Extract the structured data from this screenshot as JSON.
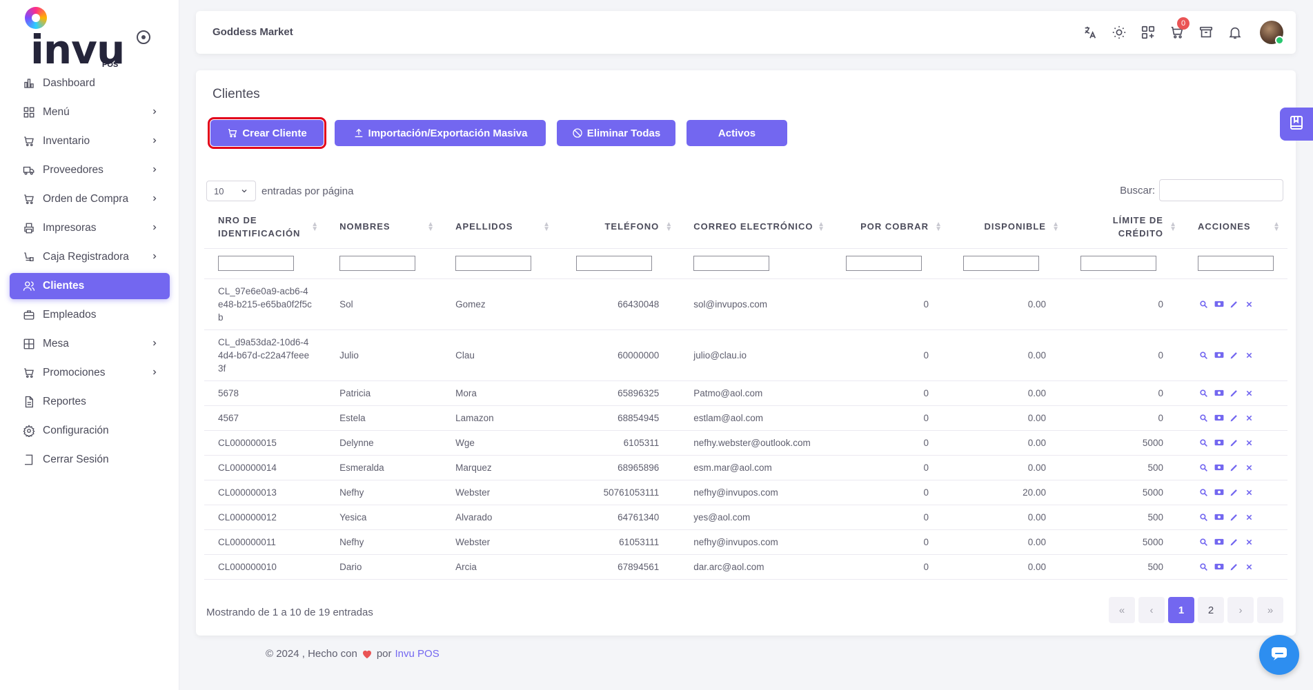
{
  "app": {
    "logo_text": "invu",
    "logo_sub": "POS",
    "store_name": "Goddess Market"
  },
  "sidebar": {
    "items": [
      {
        "label": "Dashboard",
        "icon": "chart-icon",
        "chevron": false
      },
      {
        "label": "Menú",
        "icon": "grid-icon",
        "chevron": true
      },
      {
        "label": "Inventario",
        "icon": "cart-icon",
        "chevron": true
      },
      {
        "label": "Proveedores",
        "icon": "truck-icon",
        "chevron": true
      },
      {
        "label": "Orden de Compra",
        "icon": "cart-icon",
        "chevron": true
      },
      {
        "label": "Impresoras",
        "icon": "printer-icon",
        "chevron": true
      },
      {
        "label": "Caja Registradora",
        "icon": "register-icon",
        "chevron": true
      },
      {
        "label": "Clientes",
        "icon": "users-icon",
        "chevron": false,
        "active": true
      },
      {
        "label": "Empleados",
        "icon": "briefcase-icon",
        "chevron": false
      },
      {
        "label": "Mesa",
        "icon": "table-icon",
        "chevron": true
      },
      {
        "label": "Promociones",
        "icon": "cart-icon",
        "chevron": true
      },
      {
        "label": "Reportes",
        "icon": "document-icon",
        "chevron": false
      },
      {
        "label": "Configuración",
        "icon": "gear-icon",
        "chevron": false
      },
      {
        "label": "Cerrar Sesión",
        "icon": "logout-icon",
        "chevron": false
      }
    ]
  },
  "header": {
    "cart_count": "0"
  },
  "page": {
    "title": "Clientes",
    "buttons": {
      "create": "Crear Cliente",
      "import": "Importación/Exportación Masiva",
      "delete_all": "Eliminar Todas",
      "active": "Activos"
    },
    "entries_value": "10",
    "entries_label": "entradas por página",
    "search_label": "Buscar:",
    "columns": [
      "NRO DE IDENTIFICACIÓN",
      "NOMBRES",
      "APELLIDOS",
      "TELÉFONO",
      "CORREO ELECTRÓNICO",
      "POR COBRAR",
      "DISPONIBLE",
      "LÍMITE DE CRÉDITO",
      "ACCIONES"
    ],
    "rows": [
      {
        "id": "CL_97e6e0a9-acb6-4e48-b215-e65ba0f2f5cb",
        "nombres": "Sol",
        "apellidos": "Gomez",
        "telefono": "66430048",
        "correo": "sol@invupos.com",
        "por_cobrar": "0",
        "disponible": "0.00",
        "limite": "0"
      },
      {
        "id": "CL_d9a53da2-10d6-44d4-b67d-c22a47feee3f",
        "nombres": "Julio",
        "apellidos": "Clau",
        "telefono": "60000000",
        "correo": "julio@clau.io",
        "por_cobrar": "0",
        "disponible": "0.00",
        "limite": "0"
      },
      {
        "id": "5678",
        "nombres": "Patricia",
        "apellidos": "Mora",
        "telefono": "65896325",
        "correo": "Patmo@aol.com",
        "por_cobrar": "0",
        "disponible": "0.00",
        "limite": "0"
      },
      {
        "id": "4567",
        "nombres": "Estela",
        "apellidos": "Lamazon",
        "telefono": "68854945",
        "correo": "estlam@aol.com",
        "por_cobrar": "0",
        "disponible": "0.00",
        "limite": "0"
      },
      {
        "id": "CL000000015",
        "nombres": "Delynne",
        "apellidos": "Wge",
        "telefono": "6105311",
        "correo": "nefhy.webster@outlook.com",
        "por_cobrar": "0",
        "disponible": "0.00",
        "limite": "5000"
      },
      {
        "id": "CL000000014",
        "nombres": "Esmeralda",
        "apellidos": "Marquez",
        "telefono": "68965896",
        "correo": "esm.mar@aol.com",
        "por_cobrar": "0",
        "disponible": "0.00",
        "limite": "500"
      },
      {
        "id": "CL000000013",
        "nombres": "Nefhy",
        "apellidos": "Webster",
        "telefono": "50761053111",
        "correo": "nefhy@invupos.com",
        "por_cobrar": "0",
        "disponible": "20.00",
        "limite": "5000"
      },
      {
        "id": "CL000000012",
        "nombres": "Yesica",
        "apellidos": "Alvarado",
        "telefono": "64761340",
        "correo": "yes@aol.com",
        "por_cobrar": "0",
        "disponible": "0.00",
        "limite": "500"
      },
      {
        "id": "CL000000011",
        "nombres": "Nefhy",
        "apellidos": "Webster",
        "telefono": "61053111",
        "correo": "nefhy@invupos.com",
        "por_cobrar": "0",
        "disponible": "0.00",
        "limite": "5000"
      },
      {
        "id": "CL000000010",
        "nombres": "Dario",
        "apellidos": "Arcia",
        "telefono": "67894561",
        "correo": "dar.arc@aol.com",
        "por_cobrar": "0",
        "disponible": "0.00",
        "limite": "500"
      }
    ],
    "summary": "Mostrando de 1 a 10 de 19 entradas",
    "pagination": [
      "«",
      "‹",
      "1",
      "2",
      "›",
      "»"
    ]
  },
  "footer": {
    "text": "© 2024 , Hecho con",
    "by": "por",
    "brand": "Invu POS"
  },
  "colors": {
    "accent": "#7367f0",
    "danger": "#ea5455",
    "highlight": "#e2001a"
  }
}
